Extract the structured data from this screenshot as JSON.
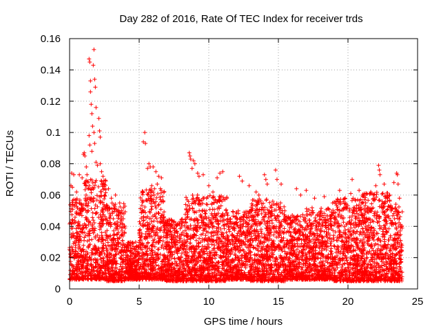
{
  "chart_data": {
    "type": "scatter",
    "title": "Day 282 of 2016, Rate Of TEC Index for receiver trds",
    "xlabel": "GPS time / hours",
    "ylabel": "ROTI / TECUs",
    "xlim": [
      0,
      25
    ],
    "ylim": [
      0,
      0.16
    ],
    "xticks": [
      0,
      5,
      10,
      15,
      20,
      25
    ],
    "xtick_labels": [
      "0",
      "5",
      "10",
      "15",
      "20",
      "25"
    ],
    "yticks": [
      0,
      0.02,
      0.04,
      0.06,
      0.08,
      0.1,
      0.12,
      0.14,
      0.16
    ],
    "ytick_labels": [
      "0",
      "0.02",
      "0.04",
      "0.06",
      "0.08",
      "0.1",
      "0.12",
      "0.14",
      "0.16"
    ],
    "grid": true,
    "marker": "+",
    "series_color": "#ff0000",
    "series": [
      {
        "name": "ROTI",
        "points": [
          [
            1.0,
            0.086
          ],
          [
            1.05,
            0.087
          ],
          [
            1.1,
            0.085
          ],
          [
            1.2,
            0.078
          ],
          [
            1.25,
            0.073
          ],
          [
            1.4,
            0.147
          ],
          [
            1.45,
            0.145
          ],
          [
            1.5,
            0.133
          ],
          [
            1.5,
            0.126
          ],
          [
            1.55,
            0.118
          ],
          [
            1.6,
            0.112
          ],
          [
            1.65,
            0.104
          ],
          [
            1.4,
            0.098
          ],
          [
            1.45,
            0.092
          ],
          [
            1.6,
            0.088
          ],
          [
            1.7,
            0.143
          ],
          [
            1.75,
            0.153
          ],
          [
            1.8,
            0.134
          ],
          [
            1.85,
            0.129
          ],
          [
            1.9,
            0.116
          ],
          [
            1.75,
            0.1
          ],
          [
            1.8,
            0.093
          ],
          [
            2.1,
            0.109
          ],
          [
            2.15,
            0.101
          ],
          [
            2.2,
            0.097
          ],
          [
            1.9,
            0.081
          ],
          [
            2.0,
            0.079
          ],
          [
            2.2,
            0.08
          ],
          [
            2.3,
            0.075
          ],
          [
            2.4,
            0.072
          ],
          [
            0.15,
            0.074
          ],
          [
            0.3,
            0.073
          ],
          [
            0.1,
            0.066
          ],
          [
            0.2,
            0.065
          ],
          [
            0.5,
            0.062
          ],
          [
            0.7,
            0.073
          ],
          [
            0.9,
            0.071
          ],
          [
            2.6,
            0.069
          ],
          [
            2.8,
            0.064
          ],
          [
            3.0,
            0.058
          ],
          [
            3.3,
            0.06
          ],
          [
            3.6,
            0.055
          ],
          [
            3.9,
            0.048
          ],
          [
            5.4,
            0.1
          ],
          [
            5.45,
            0.093
          ],
          [
            5.3,
            0.094
          ],
          [
            5.6,
            0.077
          ],
          [
            5.7,
            0.08
          ],
          [
            5.8,
            0.078
          ],
          [
            6.0,
            0.078
          ],
          [
            6.2,
            0.075
          ],
          [
            6.4,
            0.072
          ],
          [
            6.6,
            0.071
          ],
          [
            5.9,
            0.066
          ],
          [
            6.1,
            0.064
          ],
          [
            6.3,
            0.067
          ],
          [
            8.6,
            0.087
          ],
          [
            8.65,
            0.085
          ],
          [
            8.7,
            0.083
          ],
          [
            8.9,
            0.082
          ],
          [
            9.0,
            0.08
          ],
          [
            8.8,
            0.077
          ],
          [
            9.2,
            0.074
          ],
          [
            9.3,
            0.072
          ],
          [
            9.6,
            0.073
          ],
          [
            10.0,
            0.066
          ],
          [
            10.3,
            0.062
          ],
          [
            10.6,
            0.071
          ],
          [
            10.8,
            0.074
          ],
          [
            11.0,
            0.075
          ],
          [
            11.3,
            0.058
          ],
          [
            12.2,
            0.072
          ],
          [
            12.4,
            0.069
          ],
          [
            12.9,
            0.066
          ],
          [
            13.4,
            0.062
          ],
          [
            13.6,
            0.06
          ],
          [
            14.0,
            0.073
          ],
          [
            14.1,
            0.07
          ],
          [
            14.2,
            0.067
          ],
          [
            14.8,
            0.076
          ],
          [
            14.9,
            0.07
          ],
          [
            15.2,
            0.067
          ],
          [
            16.3,
            0.064
          ],
          [
            16.6,
            0.06
          ],
          [
            17.0,
            0.063
          ],
          [
            17.6,
            0.058
          ],
          [
            18.3,
            0.059
          ],
          [
            18.9,
            0.055
          ],
          [
            19.4,
            0.063
          ],
          [
            19.8,
            0.058
          ],
          [
            20.2,
            0.061
          ],
          [
            20.3,
            0.07
          ],
          [
            20.8,
            0.063
          ],
          [
            21.2,
            0.057
          ],
          [
            21.6,
            0.061
          ],
          [
            22.0,
            0.066
          ],
          [
            22.2,
            0.079
          ],
          [
            22.25,
            0.076
          ],
          [
            22.3,
            0.073
          ],
          [
            22.6,
            0.067
          ],
          [
            23.0,
            0.06
          ],
          [
            23.3,
            0.068
          ],
          [
            23.5,
            0.074
          ],
          [
            23.55,
            0.073
          ],
          [
            23.6,
            0.067
          ],
          [
            23.7,
            0.058
          ]
        ],
        "dense_band": [
          {
            "x_range": [
              0.0,
              1.0
            ],
            "y_range": [
              0.006,
              0.058
            ]
          },
          {
            "x_range": [
              1.0,
              2.6
            ],
            "y_range": [
              0.006,
              0.07
            ]
          },
          {
            "x_range": [
              2.6,
              4.0
            ],
            "y_range": [
              0.005,
              0.055
            ]
          },
          {
            "x_range": [
              4.0,
              5.0
            ],
            "y_range": [
              0.006,
              0.03
            ]
          },
          {
            "x_range": [
              5.0,
              6.8
            ],
            "y_range": [
              0.006,
              0.065
            ]
          },
          {
            "x_range": [
              6.8,
              8.3
            ],
            "y_range": [
              0.005,
              0.045
            ]
          },
          {
            "x_range": [
              8.3,
              11.3
            ],
            "y_range": [
              0.005,
              0.06
            ]
          },
          {
            "x_range": [
              11.3,
              13.0
            ],
            "y_range": [
              0.006,
              0.05
            ]
          },
          {
            "x_range": [
              13.0,
              15.5
            ],
            "y_range": [
              0.005,
              0.058
            ]
          },
          {
            "x_range": [
              15.5,
              17.0
            ],
            "y_range": [
              0.006,
              0.048
            ]
          },
          {
            "x_range": [
              17.0,
              19.0
            ],
            "y_range": [
              0.006,
              0.052
            ]
          },
          {
            "x_range": [
              19.0,
              21.0
            ],
            "y_range": [
              0.005,
              0.058
            ]
          },
          {
            "x_range": [
              21.0,
              23.0
            ],
            "y_range": [
              0.005,
              0.062
            ]
          },
          {
            "x_range": [
              23.0,
              23.9
            ],
            "y_range": [
              0.005,
              0.055
            ]
          }
        ]
      }
    ]
  }
}
